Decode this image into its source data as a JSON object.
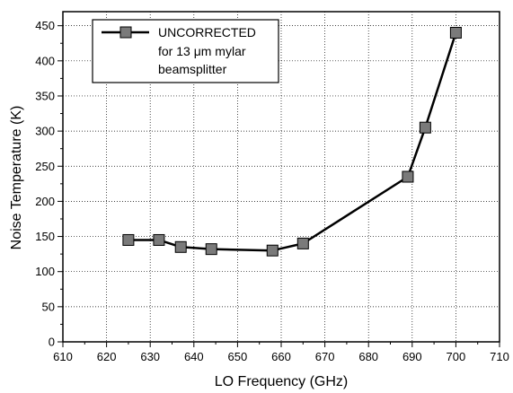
{
  "chart_data": {
    "type": "line",
    "title": "",
    "xlabel": "LO Frequency (GHz)",
    "ylabel": "Noise Temperature (K)",
    "xlim": [
      610,
      710
    ],
    "ylim": [
      0,
      470
    ],
    "xticks": [
      610,
      620,
      630,
      640,
      650,
      660,
      670,
      680,
      690,
      700,
      710
    ],
    "yticks": [
      0,
      50,
      100,
      150,
      200,
      250,
      300,
      350,
      400,
      450
    ],
    "grid": true,
    "legend_position": "top-left",
    "series": [
      {
        "name": "UNCORRECTED for 13 μm mylar beamsplitter",
        "legend_lines": [
          "UNCORRECTED",
          "for 13 μm mylar",
          "beamsplitter"
        ],
        "marker": "square",
        "line_style": "solid",
        "color": "#000000",
        "marker_fill": "#7a7a7a",
        "x": [
          625,
          632,
          637,
          644,
          658,
          665,
          689,
          693,
          700
        ],
        "y": [
          145,
          145,
          135,
          132,
          130,
          140,
          235,
          305,
          440
        ]
      }
    ]
  }
}
